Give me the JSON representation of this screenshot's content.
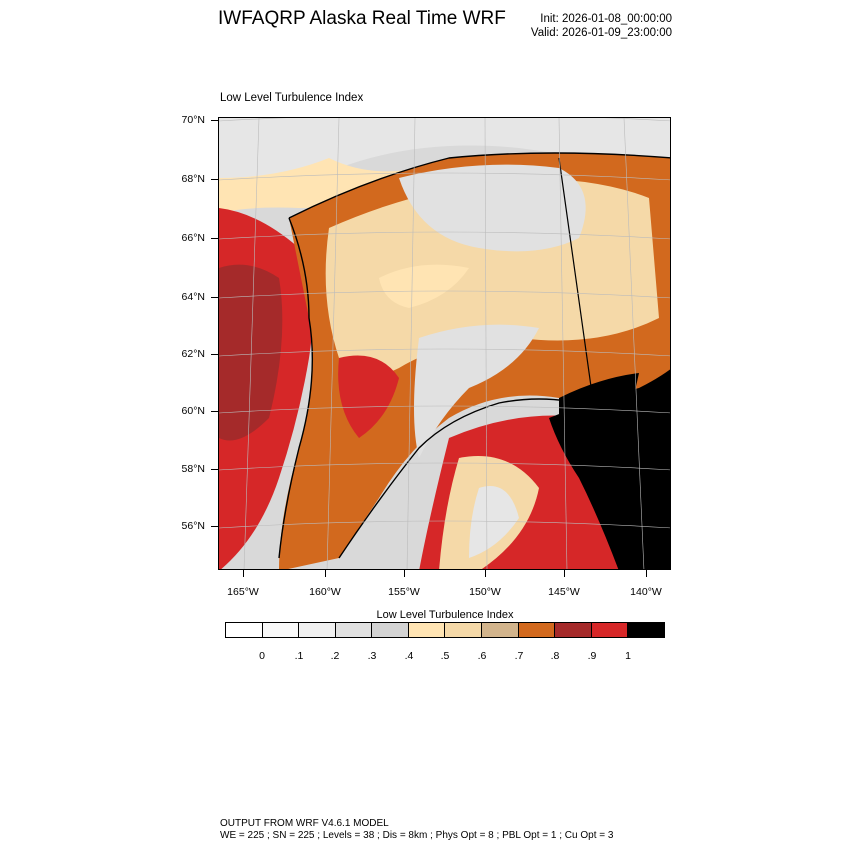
{
  "title": "IWFAQRP Alaska Real Time WRF",
  "init_label": "Init: 2026-01-08_00:00:00",
  "valid_label": "Valid: 2026-01-09_23:00:00",
  "plot_title": "Low Level Turbulence Index",
  "map": {
    "latitude_labels": [
      "70°N",
      "68°N",
      "66°N",
      "64°N",
      "62°N",
      "60°N",
      "58°N",
      "56°N"
    ],
    "longitude_labels": [
      "165°W",
      "160°W",
      "155°W",
      "150°W",
      "145°W",
      "140°W"
    ],
    "projection_grid": "on"
  },
  "colorbar": {
    "title": "Low Level Turbulence Index",
    "colors": [
      "#ffffff",
      "#f9f9f9",
      "#f0f0f0",
      "#e1e1e1",
      "#d3d3d3",
      "#ffe4b3",
      "#f5d9a8",
      "#d2b48c",
      "#d2691e",
      "#a52a2a",
      "#d62728",
      "#000000"
    ],
    "tick_labels": [
      "0",
      ".1",
      ".2",
      ".3",
      ".4",
      ".5",
      ".6",
      ".7",
      ".8",
      ".9",
      "1"
    ]
  },
  "footer": {
    "line1": "OUTPUT FROM WRF V4.6.1 MODEL",
    "line2": "WE = 225 ; SN = 225 ; Levels = 38 ; Dis = 8km ; Phys Opt = 8 ; PBL Opt = 1 ; Cu Opt = 3"
  }
}
